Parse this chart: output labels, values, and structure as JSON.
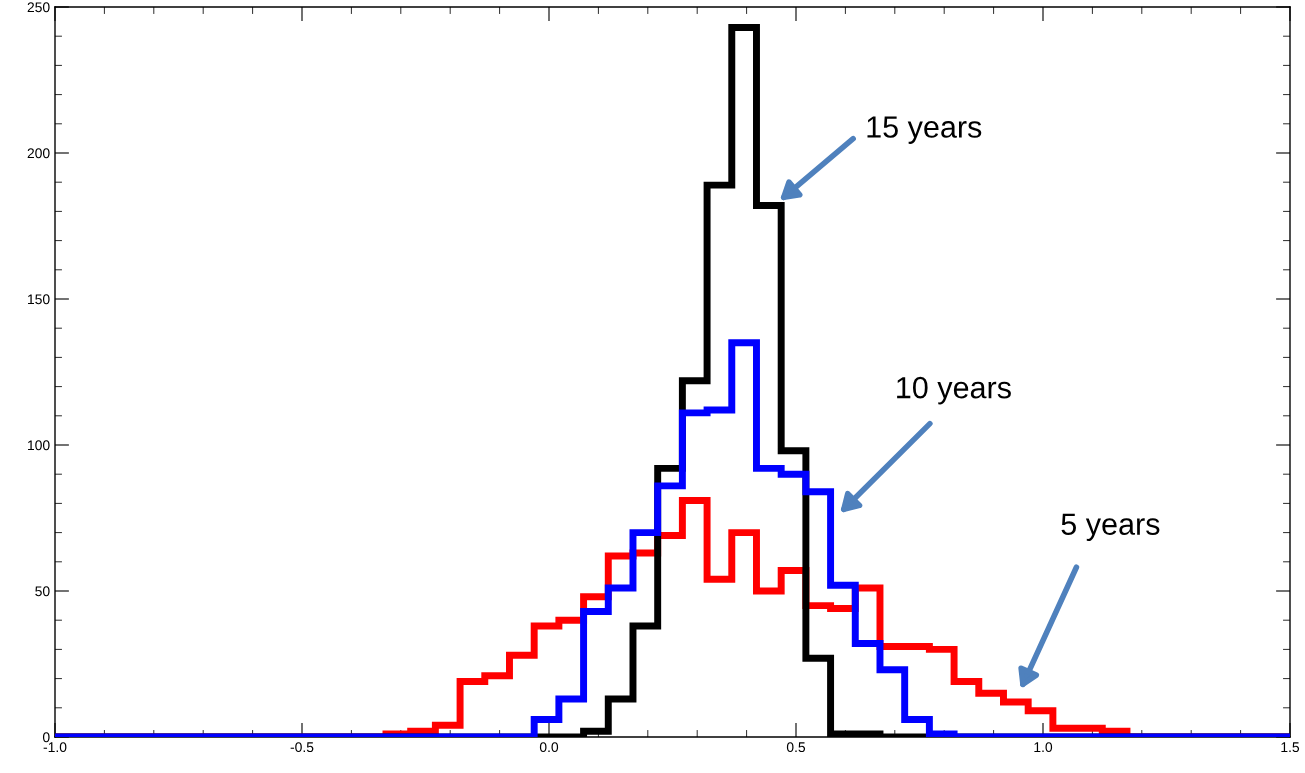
{
  "chart_data": {
    "type": "histogram",
    "bins": [
      -1.0,
      -0.33,
      -0.28,
      -0.23,
      -0.18,
      -0.13,
      -0.08,
      -0.03,
      0.02,
      0.07,
      0.12,
      0.17,
      0.22,
      0.27,
      0.32,
      0.37,
      0.42,
      0.47,
      0.52,
      0.57,
      0.62,
      0.67,
      0.72,
      0.77,
      0.82,
      0.87,
      0.92,
      0.97,
      1.02,
      1.07,
      1.12,
      1.17,
      1.5
    ],
    "series": [
      {
        "color": "#ff0000",
        "values": [
          0,
          1,
          2,
          4,
          19,
          21,
          28,
          38,
          40,
          48,
          62,
          63,
          69,
          81,
          54,
          70,
          50,
          57,
          45,
          44,
          51,
          31,
          31,
          30,
          19,
          15,
          12,
          9,
          3,
          3,
          2,
          0
        ]
      },
      {
        "color": "#000000",
        "values": [
          0,
          0,
          0,
          0,
          0,
          0,
          0,
          0,
          0,
          2,
          13,
          38,
          92,
          122,
          189,
          243,
          182,
          98,
          27,
          1,
          1,
          0,
          0,
          0,
          0,
          0,
          0,
          0,
          0,
          0,
          0,
          0
        ]
      },
      {
        "color": "#0000ff",
        "values": [
          0,
          0,
          0,
          0,
          0,
          0,
          0,
          6,
          13,
          43,
          51,
          70,
          86,
          111,
          112,
          135,
          92,
          90,
          84,
          52,
          32,
          23,
          6,
          1,
          0,
          0,
          0,
          0,
          0,
          0,
          0,
          0
        ]
      }
    ],
    "xlim": [
      -1.0,
      1.5
    ],
    "xticks": [
      {
        "value": -1.0,
        "label": "-1.0"
      },
      {
        "value": -0.5,
        "label": "-0.5"
      },
      {
        "value": 0.0,
        "label": "0.0"
      },
      {
        "value": 0.5,
        "label": "0.5"
      },
      {
        "value": 1.0,
        "label": "1.0"
      },
      {
        "value": 1.5,
        "label": "1.5"
      }
    ],
    "ylim": [
      0,
      250
    ],
    "yticks": [
      0,
      50,
      100,
      150,
      200,
      250
    ],
    "annotations": [
      "15 years",
      "10 years",
      "5 years"
    ]
  }
}
